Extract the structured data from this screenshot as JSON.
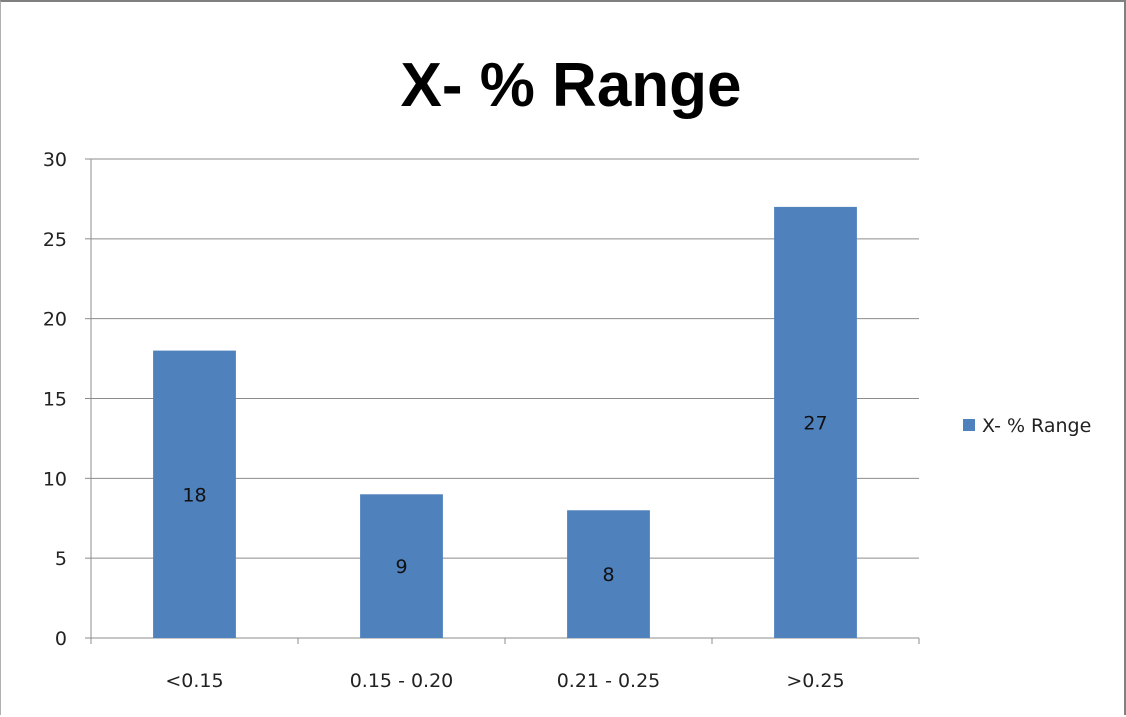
{
  "chart_data": {
    "type": "bar",
    "title": "X- % Range",
    "categories": [
      "<0.15",
      "0.15 - 0.20",
      "0.21 - 0.25",
      ">0.25"
    ],
    "series": [
      {
        "name": "X- % Range",
        "values": [
          18,
          9,
          8,
          27
        ],
        "color": "#4f81bd"
      }
    ],
    "data_labels": [
      "18",
      "9",
      "8",
      "27"
    ],
    "y_ticks": [
      "0",
      "5",
      "10",
      "15",
      "20",
      "25",
      "30"
    ],
    "ylim": [
      0,
      30
    ],
    "grid": true,
    "legend_position": "right"
  }
}
